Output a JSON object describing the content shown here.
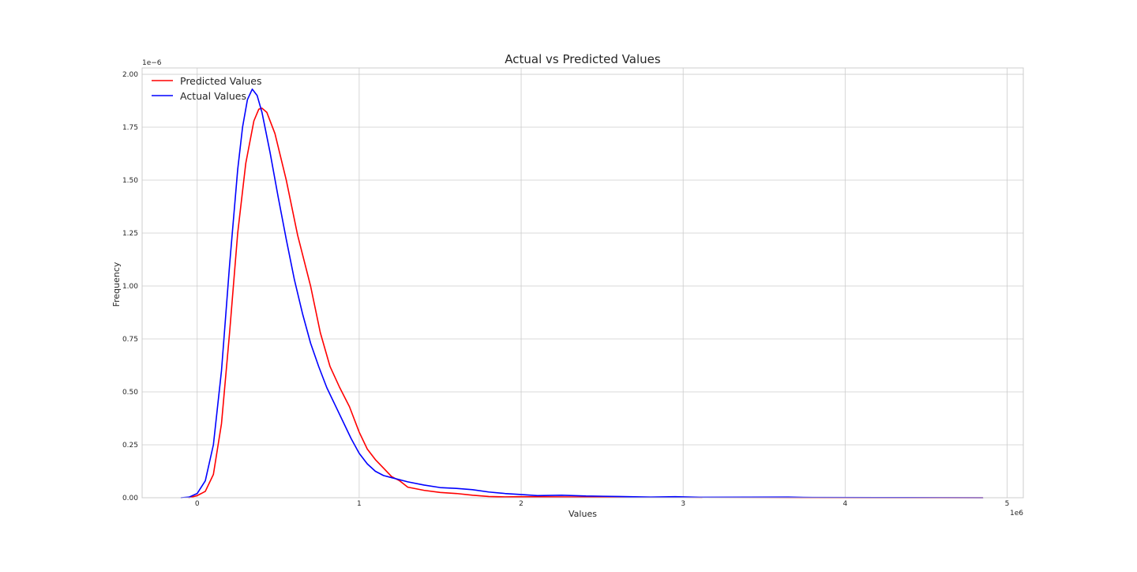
{
  "chart_data": {
    "type": "line",
    "title": "Actual vs Predicted Values",
    "xlabel": "Values",
    "ylabel": "Frequency",
    "x_offset_label": "1e6",
    "y_offset_label": "1e−6",
    "xlim": [
      -0.34,
      5.1
    ],
    "ylim": [
      0,
      2.03
    ],
    "x_ticks": [
      0,
      1,
      2,
      3,
      4,
      5
    ],
    "x_tick_labels": [
      "0",
      "1",
      "2",
      "3",
      "4",
      "5"
    ],
    "y_ticks": [
      0,
      0.25,
      0.5,
      0.75,
      1.0,
      1.25,
      1.5,
      1.75,
      2.0
    ],
    "y_tick_labels": [
      "0.00",
      "0.25",
      "0.50",
      "0.75",
      "1.00",
      "1.25",
      "1.50",
      "1.75",
      "2.00"
    ],
    "grid": true,
    "legend_position": "upper-left",
    "series": [
      {
        "name": "Predicted Values",
        "color": "#ff0000",
        "points": [
          [
            -0.05,
            0.0
          ],
          [
            0.0,
            0.01
          ],
          [
            0.05,
            0.03
          ],
          [
            0.1,
            0.11
          ],
          [
            0.15,
            0.35
          ],
          [
            0.2,
            0.78
          ],
          [
            0.25,
            1.25
          ],
          [
            0.3,
            1.58
          ],
          [
            0.35,
            1.78
          ],
          [
            0.38,
            1.835
          ],
          [
            0.4,
            1.84
          ],
          [
            0.43,
            1.82
          ],
          [
            0.48,
            1.72
          ],
          [
            0.55,
            1.5
          ],
          [
            0.62,
            1.24
          ],
          [
            0.7,
            1.0
          ],
          [
            0.76,
            0.78
          ],
          [
            0.82,
            0.62
          ],
          [
            0.88,
            0.52
          ],
          [
            0.94,
            0.43
          ],
          [
            1.0,
            0.31
          ],
          [
            1.05,
            0.23
          ],
          [
            1.1,
            0.18
          ],
          [
            1.15,
            0.14
          ],
          [
            1.2,
            0.1
          ],
          [
            1.25,
            0.08
          ],
          [
            1.3,
            0.05
          ],
          [
            1.4,
            0.035
          ],
          [
            1.5,
            0.025
          ],
          [
            1.6,
            0.02
          ],
          [
            1.7,
            0.012
          ],
          [
            1.8,
            0.006
          ],
          [
            1.9,
            0.004
          ],
          [
            2.0,
            0.005
          ],
          [
            2.2,
            0.004
          ],
          [
            2.4,
            0.003
          ],
          [
            2.6,
            0.002
          ],
          [
            3.0,
            0.001
          ],
          [
            3.5,
            0.0005
          ],
          [
            4.0,
            0.0002
          ],
          [
            4.85,
            0.0
          ]
        ]
      },
      {
        "name": "Actual Values",
        "color": "#0000ff",
        "points": [
          [
            -0.1,
            0.0
          ],
          [
            -0.05,
            0.003
          ],
          [
            0.0,
            0.02
          ],
          [
            0.05,
            0.08
          ],
          [
            0.1,
            0.25
          ],
          [
            0.15,
            0.6
          ],
          [
            0.2,
            1.1
          ],
          [
            0.25,
            1.55
          ],
          [
            0.28,
            1.75
          ],
          [
            0.31,
            1.88
          ],
          [
            0.34,
            1.93
          ],
          [
            0.37,
            1.9
          ],
          [
            0.4,
            1.82
          ],
          [
            0.45,
            1.63
          ],
          [
            0.5,
            1.42
          ],
          [
            0.55,
            1.22
          ],
          [
            0.6,
            1.03
          ],
          [
            0.65,
            0.87
          ],
          [
            0.7,
            0.73
          ],
          [
            0.75,
            0.62
          ],
          [
            0.8,
            0.52
          ],
          [
            0.85,
            0.44
          ],
          [
            0.9,
            0.36
          ],
          [
            0.95,
            0.28
          ],
          [
            1.0,
            0.21
          ],
          [
            1.05,
            0.16
          ],
          [
            1.1,
            0.125
          ],
          [
            1.15,
            0.105
          ],
          [
            1.2,
            0.095
          ],
          [
            1.3,
            0.075
          ],
          [
            1.4,
            0.06
          ],
          [
            1.5,
            0.048
          ],
          [
            1.6,
            0.044
          ],
          [
            1.7,
            0.038
          ],
          [
            1.8,
            0.027
          ],
          [
            1.9,
            0.02
          ],
          [
            2.0,
            0.015
          ],
          [
            2.1,
            0.01
          ],
          [
            2.25,
            0.012
          ],
          [
            2.4,
            0.008
          ],
          [
            2.6,
            0.006
          ],
          [
            2.8,
            0.003
          ],
          [
            2.95,
            0.005
          ],
          [
            3.1,
            0.002
          ],
          [
            3.4,
            0.0025
          ],
          [
            3.65,
            0.003
          ],
          [
            3.8,
            0.001
          ],
          [
            4.2,
            0.0008
          ],
          [
            4.6,
            0.0005
          ],
          [
            4.85,
            0.0
          ]
        ]
      }
    ]
  }
}
